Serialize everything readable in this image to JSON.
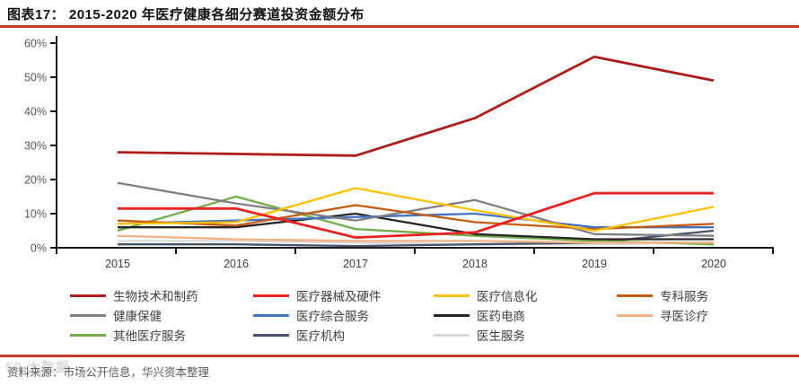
{
  "header": {
    "title": "图表17：  2015-2020 年医疗健康各细分赛道投资金额分布",
    "rule_color": "#c43c28"
  },
  "footer": {
    "source": "资料来源：市场公开信息，华兴资本整理",
    "watermark": "50 大数据"
  },
  "chart_data": {
    "type": "line",
    "title": "图表17： 2015-2020 年医疗健康各细分赛道投资金额分布",
    "x": [
      "2015",
      "2016",
      "2017",
      "2018",
      "2019",
      "2020"
    ],
    "ylim": [
      0,
      60
    ],
    "yticks": [
      "0%",
      "10%",
      "20%",
      "30%",
      "40%",
      "50%",
      "60%"
    ],
    "grid": false,
    "legend_position": "bottom",
    "axis_color": "#1a1a1a",
    "ytick_color": "#595959",
    "xtick_color": "#404040",
    "series": [
      {
        "name": "生物技术和制药",
        "color": "#ae1c1c",
        "width": 2.8,
        "values": [
          28,
          27.5,
          27,
          38,
          56,
          49
        ]
      },
      {
        "name": "医疗器械及硬件",
        "color": "#ec2222",
        "width": 2.8,
        "values": [
          11.5,
          11.5,
          3,
          4.5,
          16,
          16
        ]
      },
      {
        "name": "医疗信息化",
        "color": "#ffc000",
        "width": 2.3,
        "values": [
          7,
          7.5,
          17.5,
          11,
          5,
          12
        ]
      },
      {
        "name": "专科服务",
        "color": "#c55a11",
        "width": 2.3,
        "values": [
          8,
          6.5,
          12.5,
          7.5,
          5.5,
          7
        ]
      },
      {
        "name": "健康保健",
        "color": "#7f7f7f",
        "width": 2.3,
        "values": [
          19,
          13,
          8,
          14,
          4,
          3.5
        ]
      },
      {
        "name": "医疗综合服务",
        "color": "#4472c4",
        "width": 2.3,
        "values": [
          7,
          8,
          9,
          10,
          6,
          6
        ]
      },
      {
        "name": "医药电商",
        "color": "#262626",
        "width": 2.3,
        "values": [
          6,
          6,
          10,
          4,
          2.5,
          2.5
        ]
      },
      {
        "name": "寻医诊疗",
        "color": "#f4b183",
        "width": 2.3,
        "values": [
          3.5,
          2.5,
          2,
          2,
          1.5,
          1.5
        ]
      },
      {
        "name": "其他医疗服务",
        "color": "#70ad47",
        "width": 2.3,
        "values": [
          5,
          15,
          5.5,
          3.5,
          2,
          1
        ]
      },
      {
        "name": "医疗机构",
        "color": "#44546a",
        "width": 2.3,
        "values": [
          1,
          1,
          0.5,
          1,
          1.5,
          5
        ]
      },
      {
        "name": "医生服务",
        "color": "#d9d9d9",
        "width": 2.3,
        "values": [
          2,
          2,
          1.5,
          1,
          1,
          1.5
        ]
      }
    ]
  }
}
